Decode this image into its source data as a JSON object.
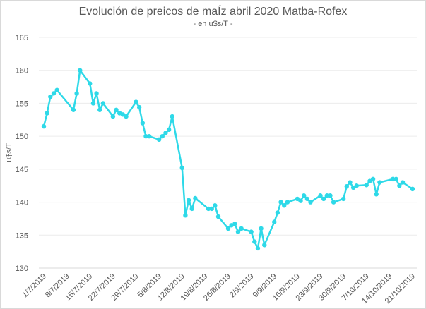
{
  "chart_data": {
    "type": "line",
    "title": "Evolución de preicos de maÍz abril 2020 Matba-Rofex",
    "subtitle": "- en u$s/T -",
    "xlabel": "",
    "ylabel": "u$s/T",
    "ylim": [
      130,
      165
    ],
    "yticks": [
      "130",
      "135",
      "140",
      "145",
      "150",
      "155",
      "160",
      "165"
    ],
    "x_origin": "1/7/2019",
    "x_unit": "days since x_origin",
    "xlim": [
      0,
      112
    ],
    "xtick_days": [
      0,
      7,
      14,
      21,
      28,
      35,
      42,
      49,
      56,
      63,
      70,
      77,
      84,
      91,
      98,
      105,
      112
    ],
    "xtick_labels": [
      "1/7/2019",
      "8/7/2019",
      "15/7/2019",
      "22/7/2019",
      "29/7/2019",
      "5/8/2019",
      "12/8/2019",
      "19/8/2019",
      "26/8/2019",
      "2/9/2019",
      "9/9/2019",
      "16/9/2019",
      "23/9/2019",
      "30/9/2019",
      "7/10/2019",
      "14/10/2019",
      "21/10/2019"
    ],
    "grid": true,
    "color": "#2ed9e8",
    "series": [
      {
        "name": "Maíz abril 2020",
        "x": [
          0,
          1,
          2,
          3,
          4,
          9,
          10,
          11,
          14,
          15,
          16,
          17,
          18,
          21,
          22,
          23,
          24,
          25,
          28,
          29,
          30,
          31,
          32,
          35,
          36,
          37,
          38,
          39,
          42,
          43,
          44,
          45,
          46,
          50,
          51,
          52,
          53,
          56,
          57,
          58,
          59,
          60,
          63,
          64,
          65,
          66,
          67,
          70,
          71,
          72,
          73,
          74,
          77,
          78,
          79,
          80,
          81,
          84,
          85,
          86,
          87,
          88,
          91,
          92,
          93,
          94,
          95,
          98,
          99,
          100,
          101,
          102,
          106,
          107,
          108,
          109,
          112
        ],
        "values": [
          151.5,
          153.5,
          156,
          156.5,
          157,
          154,
          156.5,
          160,
          158,
          155,
          156.5,
          154,
          155,
          153,
          154,
          153.5,
          153.3,
          153,
          155.2,
          154.4,
          152,
          150,
          150,
          149.5,
          150,
          150.5,
          151,
          153,
          145.2,
          138,
          140.3,
          139,
          140.6,
          139,
          139,
          139.5,
          137.8,
          136,
          136.5,
          136.7,
          135.5,
          136,
          135.5,
          134,
          133,
          136,
          133.5,
          137,
          138.4,
          140,
          139.5,
          140,
          140.5,
          140.2,
          141,
          140.5,
          140,
          141,
          140.5,
          141,
          141,
          140,
          140.5,
          142.4,
          143,
          142.2,
          142.5,
          142.6,
          143.2,
          143.5,
          141.2,
          143,
          143.5,
          143.5,
          142.5,
          143,
          142
        ]
      }
    ]
  }
}
